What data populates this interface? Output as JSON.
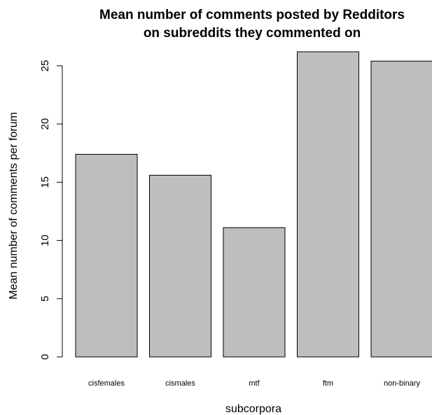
{
  "chart_data": {
    "type": "bar",
    "title_lines": [
      "Mean number of comments posted by Redditors",
      "on subreddits they commented on"
    ],
    "xlabel": "subcorpora",
    "ylabel": "Mean number of comments per forum",
    "categories": [
      "cisfemales",
      "cismales",
      "mtf",
      "ftm",
      "non-binary"
    ],
    "values": [
      17.4,
      15.6,
      11.1,
      26.2,
      25.4
    ],
    "yticks": [
      0,
      5,
      10,
      15,
      20,
      25
    ],
    "ytick_labels": [
      "0",
      "5",
      "10",
      "15",
      "20",
      "25"
    ],
    "ylim": [
      0,
      26.2
    ],
    "grid": false,
    "legend": "none",
    "bar_color": "#bebebe",
    "edge_color": "#000000"
  }
}
